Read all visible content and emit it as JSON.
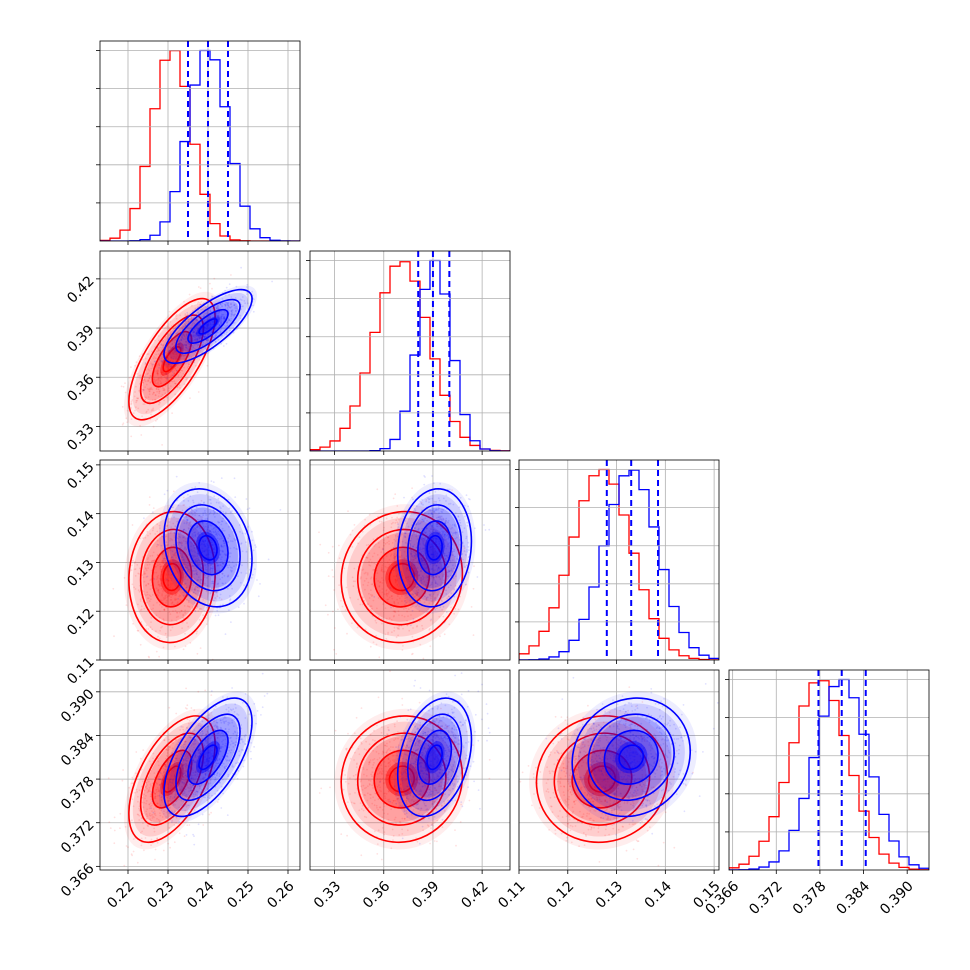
{
  "colors": {
    "red": "#ff0000",
    "blue": "#0000ff",
    "grid": "#b0b0b0"
  },
  "chart_data": {
    "type": "corner",
    "grid": true,
    "parameters": [
      {
        "ticks": [
          0.22,
          0.23,
          0.24,
          0.25,
          0.26
        ],
        "tick_labels": [
          "0.22",
          "0.23",
          "0.24",
          "0.25",
          "0.26"
        ],
        "range": [
          0.213,
          0.263
        ]
      },
      {
        "ticks": [
          0.33,
          0.36,
          0.39,
          0.42
        ],
        "tick_labels": [
          "0.33",
          "0.36",
          "0.39",
          "0.42"
        ],
        "range": [
          0.315,
          0.437
        ]
      },
      {
        "ticks": [
          0.11,
          0.12,
          0.13,
          0.14,
          0.15
        ],
        "tick_labels": [
          "0.11",
          "0.12",
          "0.13",
          "0.14",
          "0.15"
        ],
        "range": [
          0.11,
          0.151
        ]
      },
      {
        "ticks": [
          0.366,
          0.372,
          0.378,
          0.384,
          0.39
        ],
        "tick_labels": [
          "0.366",
          "0.372",
          "0.378",
          "0.384",
          "0.390"
        ],
        "range": [
          0.3655,
          0.393
        ]
      }
    ],
    "series": [
      {
        "name": "",
        "color": "#ff0000",
        "means": [
          0.231,
          0.371,
          0.127,
          0.378
        ],
        "sigmas": [
          0.0049,
          0.0168,
          0.0061,
          0.00395
        ],
        "correlations": {
          "1-0": 0.7,
          "2-0": 0.05,
          "2-1": 0.05,
          "3-0": 0.55,
          "3-1": 0.05,
          "3-2": 0.05
        }
      },
      {
        "name": "",
        "color": "#0000ff",
        "means": [
          0.24,
          0.391,
          0.133,
          0.381
        ],
        "sigmas": [
          0.005,
          0.0102,
          0.0055,
          0.0037
        ],
        "correlations": {
          "1-0": 0.75,
          "2-0": -0.2,
          "2-1": 0.1,
          "3-0": 0.6,
          "3-1": 0.3,
          "3-2": 0.1
        }
      }
    ],
    "quantile_lines": {
      "color": "#0000ff",
      "values": [
        [
          0.235,
          0.24,
          0.245
        ],
        [
          0.381,
          0.39,
          0.4
        ],
        [
          0.128,
          0.133,
          0.1385
        ],
        [
          0.3778,
          0.381,
          0.3843
        ]
      ]
    }
  }
}
